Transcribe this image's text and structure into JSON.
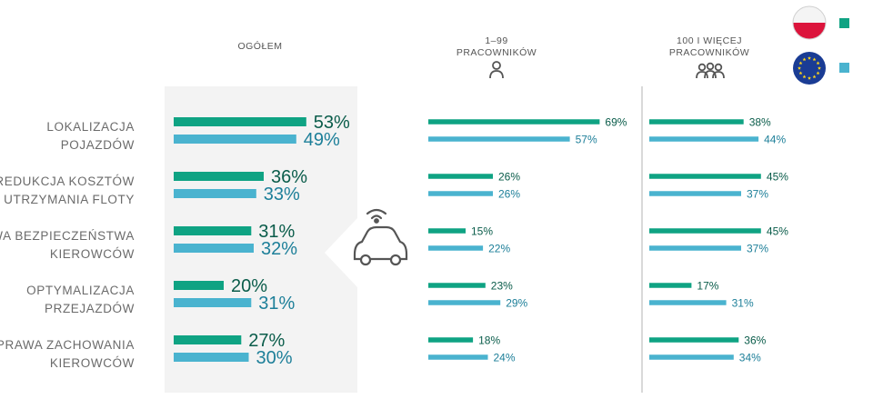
{
  "chart_data": {
    "type": "bar",
    "orientation": "horizontal",
    "categories": [
      [
        "LOKALIZACJA",
        "POJAZDÓW"
      ],
      [
        "REDUKCJA KOSZTÓW",
        "UTRZYMANIA FLOTY"
      ],
      [
        "PRAWA BEZPIECZEŃSTWA",
        "KIEROWCÓW"
      ],
      [
        "OPTYMALIZACJA",
        "PRZEJAZDÓW"
      ],
      [
        "POPRAWA ZACHOWANIA",
        "KIEROWCÓW"
      ]
    ],
    "panels": [
      {
        "title": [
          "OGÓŁEM"
        ],
        "icon": "",
        "series": [
          {
            "key": "pl",
            "values": [
              53,
              36,
              31,
              20,
              27
            ],
            "labels": [
              "53%",
              "36%",
              "31%",
              "20%",
              "27%"
            ]
          },
          {
            "key": "eu",
            "values": [
              49,
              33,
              32,
              31,
              30
            ],
            "labels": [
              "49%",
              "33%",
              "32%",
              "31%",
              "30%"
            ]
          }
        ]
      },
      {
        "title": [
          "1–99",
          "PRACOWNIKÓW"
        ],
        "icon": "person-icon",
        "series": [
          {
            "key": "pl",
            "values": [
              69,
              26,
              15,
              23,
              18
            ],
            "labels": [
              "69%",
              "26%",
              "15%",
              "23%",
              "18%"
            ]
          },
          {
            "key": "eu",
            "values": [
              57,
              26,
              22,
              29,
              24
            ],
            "labels": [
              "57%",
              "26%",
              "22%",
              "29%",
              "24%"
            ]
          }
        ]
      },
      {
        "title": [
          "100 I WIĘCEJ",
          "PRACOWNIKÓW"
        ],
        "icon": "people-group-icon",
        "series": [
          {
            "key": "pl",
            "values": [
              38,
              45,
              45,
              17,
              36
            ],
            "labels": [
              "38%",
              "45%",
              "45%",
              "17%",
              "36%"
            ]
          },
          {
            "key": "eu",
            "values": [
              44,
              37,
              37,
              31,
              34
            ],
            "labels": [
              "44%",
              "37%",
              "37%",
              "31%",
              "34%"
            ]
          }
        ]
      }
    ],
    "legend": {
      "placement": "top-right",
      "items": [
        {
          "key": "pl",
          "icon": "poland-flag-icon"
        },
        {
          "key": "eu",
          "icon": "eu-flag-icon"
        }
      ]
    },
    "center_icon": "connected-car-icon",
    "colors": {
      "pl": "#0fa383",
      "eu": "#4ab3cf",
      "pl_text": "#0a5c4a",
      "eu_text": "#1d7f99",
      "label": "#6b6b6b",
      "panel_bg": "#f3f3f3"
    }
  }
}
